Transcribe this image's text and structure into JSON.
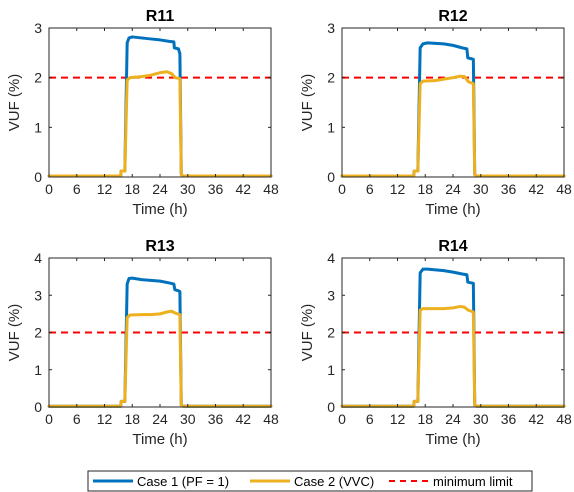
{
  "chart_data": [
    {
      "type": "line",
      "title": "R11",
      "xlabel": "Time (h)",
      "ylabel": "VUF (%)",
      "xlim": [
        0,
        48
      ],
      "ylim": [
        0,
        3
      ],
      "xticks": [
        0,
        6,
        12,
        18,
        24,
        30,
        36,
        42,
        48
      ],
      "yticks": [
        0,
        1,
        2,
        3
      ],
      "series": [
        {
          "name": "Case 1 (PF = 1)",
          "color": "#0072BD",
          "x": [
            0,
            15.5,
            15.6,
            16.4,
            16.9,
            17.3,
            18,
            20,
            22,
            24,
            26,
            27,
            27.1,
            28,
            28.3,
            28.6,
            29,
            48
          ],
          "y": [
            0.02,
            0.02,
            0.12,
            0.12,
            2.7,
            2.8,
            2.82,
            2.8,
            2.78,
            2.76,
            2.73,
            2.72,
            2.6,
            2.58,
            2.48,
            0.05,
            0.02,
            0.02
          ]
        },
        {
          "name": "Case 2 (VVC)",
          "color": "#EDB120",
          "x": [
            0,
            15.5,
            15.6,
            16.4,
            16.9,
            17.5,
            20,
            22,
            24,
            25.5,
            26.5,
            27.3,
            28.3,
            28.6,
            29,
            48
          ],
          "y": [
            0.02,
            0.02,
            0.12,
            0.12,
            1.95,
            2.0,
            2.02,
            2.05,
            2.1,
            2.12,
            2.08,
            2.0,
            1.98,
            0.05,
            0.02,
            0.02
          ]
        }
      ],
      "hline": {
        "name": "minimum limit",
        "value": 2,
        "color": "#FF0000"
      }
    },
    {
      "type": "line",
      "title": "R12",
      "xlabel": "Time (h)",
      "ylabel": "VUF (%)",
      "xlim": [
        0,
        48
      ],
      "ylim": [
        0,
        3
      ],
      "xticks": [
        0,
        6,
        12,
        18,
        24,
        30,
        36,
        42,
        48
      ],
      "yticks": [
        0,
        1,
        2,
        3
      ],
      "series": [
        {
          "name": "Case 1 (PF = 1)",
          "color": "#0072BD",
          "x": [
            0,
            15.5,
            15.6,
            16.4,
            16.9,
            17.5,
            18.5,
            22,
            24,
            26,
            27,
            27.2,
            28.4,
            28.7,
            29.1,
            48
          ],
          "y": [
            0.02,
            0.02,
            0.12,
            0.12,
            2.6,
            2.68,
            2.7,
            2.68,
            2.65,
            2.6,
            2.58,
            2.4,
            2.37,
            0.05,
            0.02,
            0.02
          ]
        },
        {
          "name": "Case 2 (VVC)",
          "color": "#EDB120",
          "x": [
            0,
            15.5,
            15.6,
            16.4,
            16.9,
            17.5,
            20,
            22,
            24,
            25.5,
            26.5,
            27.3,
            28.4,
            28.7,
            29.1,
            48
          ],
          "y": [
            0.02,
            0.02,
            0.12,
            0.12,
            1.88,
            1.93,
            1.94,
            1.97,
            2.0,
            2.03,
            2.02,
            1.92,
            1.88,
            0.05,
            0.02,
            0.02
          ]
        }
      ],
      "hline": {
        "name": "minimum limit",
        "value": 2,
        "color": "#FF0000"
      }
    },
    {
      "type": "line",
      "title": "R13",
      "xlabel": "Time (h)",
      "ylabel": "VUF (%)",
      "xlim": [
        0,
        48
      ],
      "ylim": [
        0,
        4
      ],
      "xticks": [
        0,
        6,
        12,
        18,
        24,
        30,
        36,
        42,
        48
      ],
      "yticks": [
        0,
        1,
        2,
        3,
        4
      ],
      "series": [
        {
          "name": "Case 1 (PF = 1)",
          "color": "#0072BD",
          "x": [
            0,
            15.5,
            15.6,
            16.4,
            16.9,
            17.3,
            18,
            20,
            22,
            24,
            26,
            27,
            27.2,
            28,
            28.3,
            28.6,
            29,
            48
          ],
          "y": [
            0.02,
            0.02,
            0.15,
            0.15,
            3.3,
            3.45,
            3.46,
            3.42,
            3.4,
            3.38,
            3.33,
            3.3,
            3.15,
            3.12,
            3.1,
            0.05,
            0.02,
            0.02
          ]
        },
        {
          "name": "Case 2 (VVC)",
          "color": "#EDB120",
          "x": [
            0,
            15.5,
            15.6,
            16.4,
            16.9,
            17.5,
            20,
            22,
            24,
            25.5,
            26.5,
            27.3,
            28.3,
            28.6,
            29,
            48
          ],
          "y": [
            0.02,
            0.02,
            0.15,
            0.15,
            2.4,
            2.47,
            2.48,
            2.48,
            2.5,
            2.55,
            2.57,
            2.52,
            2.48,
            0.05,
            0.02,
            0.02
          ]
        }
      ],
      "hline": {
        "name": "minimum limit",
        "value": 2,
        "color": "#FF0000"
      }
    },
    {
      "type": "line",
      "title": "R14",
      "xlabel": "Time (h)",
      "ylabel": "VUF (%)",
      "xlim": [
        0,
        48
      ],
      "ylim": [
        0,
        4
      ],
      "xticks": [
        0,
        6,
        12,
        18,
        24,
        30,
        36,
        42,
        48
      ],
      "yticks": [
        0,
        1,
        2,
        3,
        4
      ],
      "series": [
        {
          "name": "Case 1 (PF = 1)",
          "color": "#0072BD",
          "x": [
            0,
            15.5,
            15.6,
            16.4,
            16.9,
            17.5,
            18.5,
            22,
            24,
            26,
            27,
            27.2,
            28.4,
            28.7,
            29.1,
            48
          ],
          "y": [
            0.02,
            0.02,
            0.15,
            0.15,
            3.6,
            3.7,
            3.7,
            3.66,
            3.62,
            3.57,
            3.55,
            3.35,
            3.32,
            0.05,
            0.02,
            0.02
          ]
        },
        {
          "name": "Case 2 (VVC)",
          "color": "#EDB120",
          "x": [
            0,
            15.5,
            15.6,
            16.4,
            16.9,
            17.5,
            20,
            22,
            24,
            25.5,
            26.5,
            27.3,
            28.4,
            28.7,
            29.1,
            48
          ],
          "y": [
            0.02,
            0.02,
            0.15,
            0.15,
            2.6,
            2.64,
            2.64,
            2.64,
            2.66,
            2.7,
            2.68,
            2.6,
            2.55,
            0.05,
            0.02,
            0.02
          ]
        }
      ],
      "hline": {
        "name": "minimum limit",
        "value": 2,
        "color": "#FF0000"
      }
    }
  ],
  "legend": {
    "placement": "bottom-center",
    "entries": [
      {
        "label": "Case 1 (PF = 1)",
        "color": "#0072BD",
        "style": "solid"
      },
      {
        "label": "Case 2 (VVC)",
        "color": "#EDB120",
        "style": "solid"
      },
      {
        "label": "minimum limit",
        "color": "#FF0000",
        "style": "dashed"
      }
    ]
  }
}
